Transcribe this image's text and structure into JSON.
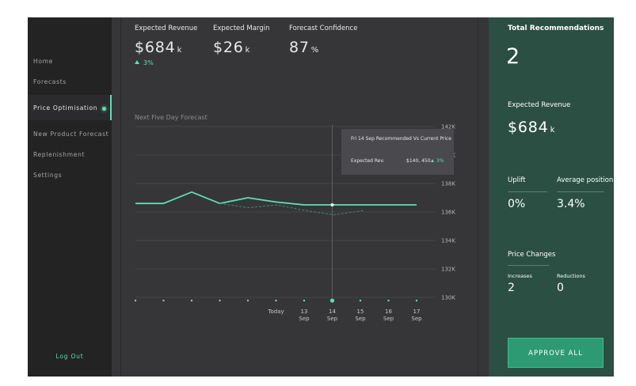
{
  "sidebar": {
    "items": [
      {
        "label": "Home",
        "active": false
      },
      {
        "label": "Forecasts",
        "active": false
      },
      {
        "label": "Price Optimisation",
        "active": true
      },
      {
        "label": "New Product Forecast",
        "active": false
      },
      {
        "label": "Replenishment",
        "active": false
      },
      {
        "label": "Settings",
        "active": false
      }
    ],
    "logout_label": "Log Out"
  },
  "kpis": [
    {
      "label": "Expected Revenue",
      "value": "$684",
      "unit": "k",
      "change": "3%"
    },
    {
      "label": "Expected Margin",
      "value": "$26",
      "unit": "k"
    },
    {
      "label": "Forecast Confidence",
      "value": "87",
      "unit": "%"
    }
  ],
  "chart_data": {
    "type": "line",
    "title": "Next Five Day Forecast",
    "x": [
      "",
      "",
      "",
      "",
      "",
      "Today",
      "13 Sep",
      "14 Sep",
      "15 Sep",
      "16 Sep",
      "17 Sep"
    ],
    "x_label_lines": [
      [],
      [],
      [],
      [],
      [],
      [
        "Today"
      ],
      [
        "13",
        "Sep"
      ],
      [
        "14",
        "Sep"
      ],
      [
        "15",
        "Sep"
      ],
      [
        "16",
        "Sep"
      ],
      [
        "17",
        "Sep"
      ]
    ],
    "ylim": [
      130,
      142
    ],
    "y_ticks": [
      130,
      132,
      134,
      136,
      138,
      140,
      142
    ],
    "y_tick_labels": [
      "130K",
      "132K",
      "134K",
      "136K",
      "138K",
      "140K",
      "142K"
    ],
    "series": [
      {
        "style": "solid",
        "color": "#5ce0b1",
        "values": [
          136.6,
          136.6,
          137.4,
          136.6,
          137.0,
          136.7,
          136.5,
          136.5,
          136.5,
          136.5,
          136.5
        ]
      },
      {
        "style": "dashed",
        "color": "#3f8d72",
        "values": [
          null,
          null,
          null,
          136.6,
          136.3,
          136.5,
          136.1,
          135.8,
          136.1,
          null,
          null
        ],
        "x_offset": [
          0,
          0,
          0,
          0,
          0,
          0.7,
          1.5,
          2.5,
          3.6,
          0,
          0
        ]
      }
    ],
    "selected_index": 7,
    "grid": true,
    "legend": "none"
  },
  "tooltip": {
    "title": "Fri 14 Sep Recommended Vs Current Price",
    "label": "Expected Rev.",
    "value": "$140, 450",
    "change": "3%"
  },
  "right_panel": {
    "total_label": "Total Recommendations",
    "total_value": "2",
    "revenue_label": "Expected Revenue",
    "revenue_value": "$684",
    "revenue_unit": "k",
    "uplift_label": "Uplift",
    "uplift_value": "0%",
    "avg_position_label": "Average position",
    "avg_position_value": "3.4%",
    "price_changes_label": "Price Changes",
    "increases_label": "Increases",
    "increases_value": "2",
    "reductions_label": "Reductions",
    "reductions_value": "0",
    "approve_label": "APPROVE ALL"
  },
  "colors": {
    "accent": "#5ce0b1",
    "panel": "#2b4f42",
    "approve_button": "#2e9a73",
    "background": "#363538",
    "sidebar": "#232324"
  }
}
